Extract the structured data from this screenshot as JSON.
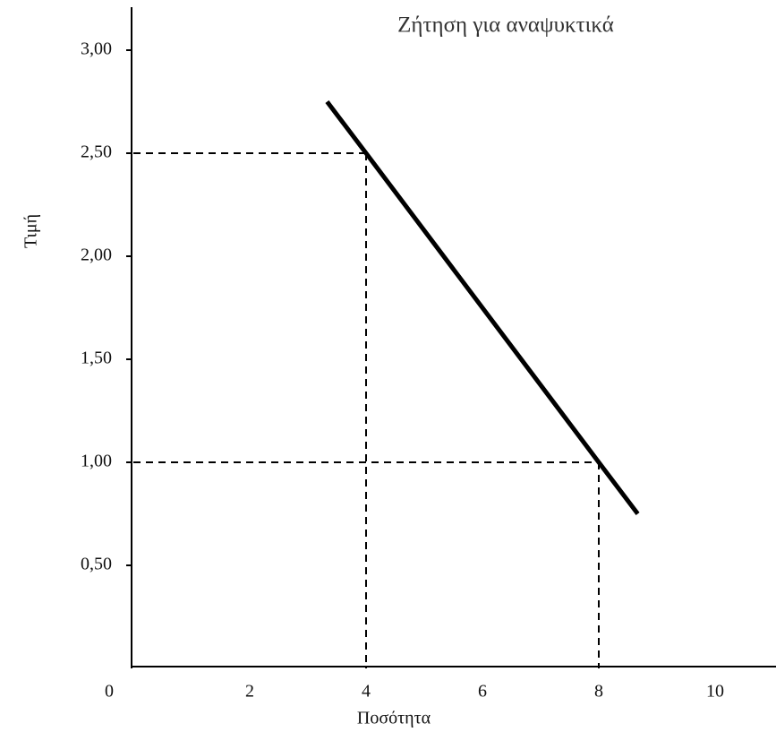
{
  "chart_data": {
    "type": "line",
    "title": "Ζήτηση για αναψυκτικά",
    "x_label": "Ποσότητα",
    "y_label": "Τιμή",
    "x": [
      3.33,
      4,
      8,
      8.67
    ],
    "series": [
      {
        "color": "#000000",
        "values": [
          2.75,
          2.5,
          1.0,
          0.75
        ]
      }
    ],
    "reference_points": [
      {
        "x": 4,
        "y": 2.5
      },
      {
        "x": 8,
        "y": 1.0
      }
    ],
    "xlim": [
      0,
      11
    ],
    "ylim": [
      0,
      3.2
    ],
    "xticks": [
      0,
      2,
      4,
      6,
      8,
      10
    ],
    "yticks": [
      {
        "value": 0.5,
        "label": "0,50"
      },
      {
        "value": 1,
        "label": "1,00"
      },
      {
        "value": 1.5,
        "label": "1,50"
      },
      {
        "value": 2,
        "label": "2,00"
      },
      {
        "value": 2.5,
        "label": "2,50"
      },
      {
        "value": 3,
        "label": "3,00"
      }
    ],
    "grid": false
  }
}
